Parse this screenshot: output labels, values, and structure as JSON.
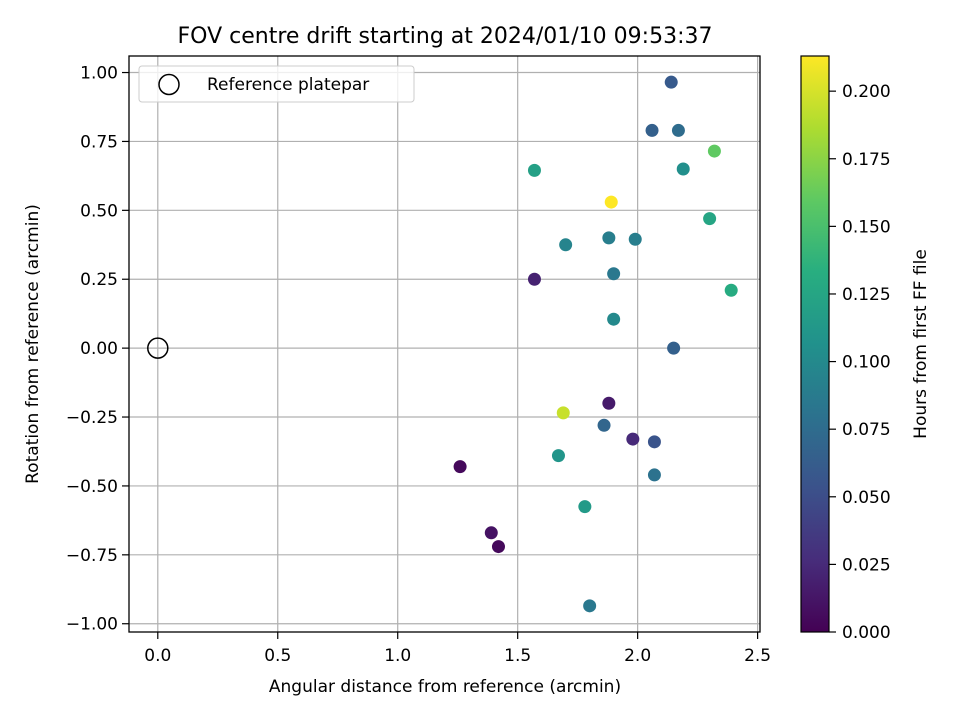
{
  "chart_data": {
    "type": "scatter",
    "title": "FOV centre drift starting at 2024/01/10 09:53:37",
    "xlabel": "Angular distance from reference (arcmin)",
    "ylabel": "Rotation from reference (arcmin)",
    "xlim": [
      -0.12,
      2.51
    ],
    "ylim": [
      -1.03,
      1.06
    ],
    "xticks": [
      0.0,
      0.5,
      1.0,
      1.5,
      2.0,
      2.5
    ],
    "xtick_labels": [
      "0.0",
      "0.5",
      "1.0",
      "1.5",
      "2.0",
      "2.5"
    ],
    "yticks": [
      -1.0,
      -0.75,
      -0.5,
      -0.25,
      0.0,
      0.25,
      0.5,
      0.75,
      1.0
    ],
    "ytick_labels": [
      "−1.00",
      "−0.75",
      "−0.50",
      "−0.25",
      "0.00",
      "0.25",
      "0.50",
      "0.75",
      "1.00"
    ],
    "grid": true,
    "legend": {
      "position": "upper-left",
      "entries": [
        {
          "label": "Reference platepar",
          "marker": "open-circle"
        }
      ]
    },
    "reference_point": {
      "x": 0.0,
      "y": 0.0
    },
    "colorbar": {
      "label": "Hours from first FF file",
      "colormap": "viridis",
      "range": [
        0.0,
        0.213
      ],
      "ticks": [
        0.0,
        0.025,
        0.05,
        0.075,
        0.1,
        0.125,
        0.15,
        0.175,
        0.2
      ],
      "tick_labels": [
        "0.000",
        "0.025",
        "0.050",
        "0.075",
        "0.100",
        "0.125",
        "0.150",
        "0.175",
        "0.200"
      ]
    },
    "points": [
      {
        "x": 2.14,
        "y": 0.965,
        "c": 0.06
      },
      {
        "x": 2.06,
        "y": 0.79,
        "c": 0.065
      },
      {
        "x": 2.17,
        "y": 0.79,
        "c": 0.075
      },
      {
        "x": 2.32,
        "y": 0.715,
        "c": 0.16
      },
      {
        "x": 1.57,
        "y": 0.645,
        "c": 0.12
      },
      {
        "x": 2.19,
        "y": 0.65,
        "c": 0.105
      },
      {
        "x": 1.89,
        "y": 0.53,
        "c": 0.213
      },
      {
        "x": 2.3,
        "y": 0.47,
        "c": 0.125
      },
      {
        "x": 1.88,
        "y": 0.4,
        "c": 0.09
      },
      {
        "x": 1.99,
        "y": 0.395,
        "c": 0.09
      },
      {
        "x": 1.7,
        "y": 0.375,
        "c": 0.095
      },
      {
        "x": 1.9,
        "y": 0.27,
        "c": 0.085
      },
      {
        "x": 1.57,
        "y": 0.25,
        "c": 0.02
      },
      {
        "x": 2.39,
        "y": 0.21,
        "c": 0.13
      },
      {
        "x": 1.9,
        "y": 0.105,
        "c": 0.1
      },
      {
        "x": 2.15,
        "y": 0.0,
        "c": 0.065
      },
      {
        "x": 1.69,
        "y": -0.235,
        "c": 0.195
      },
      {
        "x": 1.88,
        "y": -0.2,
        "c": 0.015
      },
      {
        "x": 1.86,
        "y": -0.28,
        "c": 0.07
      },
      {
        "x": 1.98,
        "y": -0.33,
        "c": 0.025
      },
      {
        "x": 2.07,
        "y": -0.34,
        "c": 0.055
      },
      {
        "x": 1.26,
        "y": -0.43,
        "c": 0.005
      },
      {
        "x": 1.67,
        "y": -0.39,
        "c": 0.11
      },
      {
        "x": 2.07,
        "y": -0.46,
        "c": 0.08
      },
      {
        "x": 1.78,
        "y": -0.575,
        "c": 0.115
      },
      {
        "x": 1.39,
        "y": -0.67,
        "c": 0.01
      },
      {
        "x": 1.42,
        "y": -0.72,
        "c": 0.005
      },
      {
        "x": 1.8,
        "y": -0.935,
        "c": 0.085
      }
    ]
  }
}
